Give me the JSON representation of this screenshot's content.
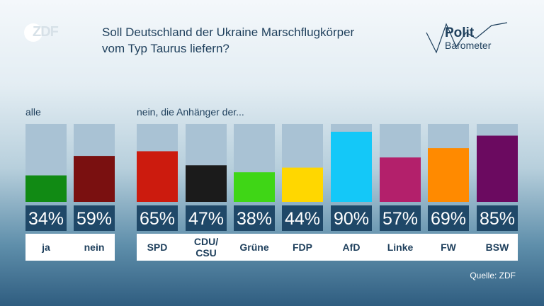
{
  "header": {
    "logo_text": "ZDF",
    "title_line1": "Soll Deutschland der Ukraine Marschflugkörper",
    "title_line2": "vom Typ Taurus liefern?",
    "brand_line1": "Polit",
    "brand_line2": "Barometer"
  },
  "groups": {
    "all_label": "alle",
    "party_label": "nein, die Anhänger der..."
  },
  "source": "Quelle: ZDF",
  "chart_data": {
    "type": "bar",
    "unit": "%",
    "ylim": [
      0,
      100
    ],
    "categories": [
      "ja",
      "nein",
      "SPD",
      "CDU/\nCSU",
      "Grüne",
      "FDP",
      "AfD",
      "Linke",
      "FW",
      "BSW"
    ],
    "values": [
      34,
      59,
      65,
      47,
      38,
      44,
      90,
      57,
      69,
      85
    ],
    "value_labels": [
      "34%",
      "59%",
      "65%",
      "47%",
      "38%",
      "44%",
      "90%",
      "57%",
      "69%",
      "85%"
    ],
    "colors": [
      "#118a14",
      "#7a1010",
      "#cc1b0e",
      "#1b1b1b",
      "#3fd616",
      "#ffd700",
      "#14c8f8",
      "#b3206b",
      "#ff8a00",
      "#6b0a60"
    ],
    "track_color": "#a9c2d4",
    "value_box_color": "#1f4868"
  }
}
